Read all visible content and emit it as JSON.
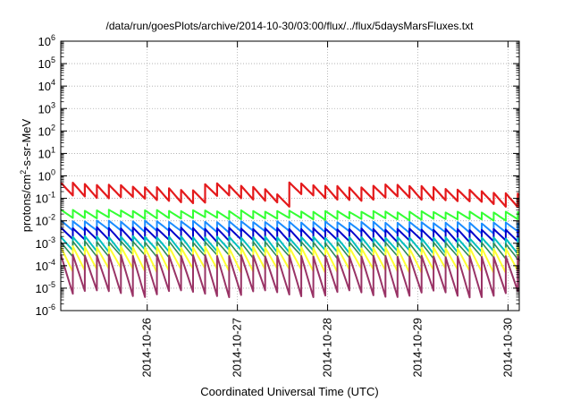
{
  "chart_data": {
    "type": "line",
    "title": "/data/run/goesPlots/archive/2014-10-30/03:00/flux/../flux/5daysMarsFluxes.txt",
    "xlabel": "Coordinated Universal Time (UTC)",
    "ylabel": {
      "pre": "protons/cm",
      "sup": "2",
      "post": "-s-sr-MeV"
    },
    "y_scale": "log",
    "y_exponent_range": [
      -6,
      6
    ],
    "y_tick_base": "10",
    "y_tick_exponents": [
      "-6",
      "-5",
      "-4",
      "-3",
      "-2",
      "-1",
      "0",
      "1",
      "2",
      "3",
      "4",
      "5",
      "6"
    ],
    "x_range": [
      "2014-10-25T01:00",
      "2014-10-30T03:00"
    ],
    "x_ticks": [
      "2014-10-26",
      "2014-10-27",
      "2014-10-28",
      "2014-10-29",
      "2014-10-30"
    ],
    "grid": true,
    "legend": "none",
    "sawtooth_period_hours": 3.2,
    "series": [
      {
        "color": "#e41a1c",
        "width": 2.2,
        "min": 0.12,
        "max": 0.5,
        "anchors": [
          [
            "2014-10-25T01:00",
            0.5
          ],
          [
            "2014-10-26T00:00",
            0.32
          ],
          [
            "2014-10-26T14:00",
            0.22
          ],
          [
            "2014-10-26T16:00",
            0.52
          ],
          [
            "2014-10-27T08:00",
            0.26
          ],
          [
            "2014-10-27T12:00",
            0.12
          ],
          [
            "2014-10-27T13:00",
            0.5
          ],
          [
            "2014-10-28T06:00",
            0.3
          ],
          [
            "2014-10-28T18:00",
            0.42
          ],
          [
            "2014-10-29T12:00",
            0.24
          ],
          [
            "2014-10-30T03:00",
            0.15
          ]
        ]
      },
      {
        "color": "#33ff33",
        "width": 2,
        "min": 0.015,
        "max": 0.035,
        "anchors": [
          [
            "2014-10-25T01:00",
            0.03
          ],
          [
            "2014-10-30T03:00",
            0.024
          ]
        ]
      },
      {
        "color": "#1a8cff",
        "width": 2,
        "min": 0.004,
        "max": 0.012,
        "anchors": [
          [
            "2014-10-25T01:00",
            0.01
          ],
          [
            "2014-10-30T03:00",
            0.008
          ]
        ]
      },
      {
        "color": "#0000cc",
        "width": 2,
        "min": 0.0015,
        "max": 0.006,
        "anchors": [
          [
            "2014-10-25T01:00",
            0.005
          ],
          [
            "2014-10-30T03:00",
            0.004
          ]
        ]
      },
      {
        "color": "#00bfbf",
        "width": 2,
        "min": 0.0005,
        "max": 0.0025,
        "anchors": [
          [
            "2014-10-25T01:00",
            0.002
          ],
          [
            "2014-10-30T03:00",
            0.0017
          ]
        ]
      },
      {
        "color": "#2e8b57",
        "width": 1.6,
        "min": 0.0003,
        "max": 0.0015,
        "anchors": [
          [
            "2014-10-25T01:00",
            0.0012
          ],
          [
            "2014-10-30T03:00",
            0.001
          ]
        ]
      },
      {
        "color": "#ffff33",
        "width": 2,
        "min": 7e-05,
        "max": 0.0009,
        "anchors": [
          [
            "2014-10-25T01:00",
            0.0007
          ],
          [
            "2014-10-30T03:00",
            0.0006
          ]
        ]
      },
      {
        "color": "#993366",
        "width": 2,
        "min": 5e-06,
        "max": 0.00035,
        "anchors": [
          [
            "2014-10-25T01:00",
            0.0003
          ],
          [
            "2014-10-30T03:00",
            0.00025
          ]
        ]
      }
    ]
  }
}
